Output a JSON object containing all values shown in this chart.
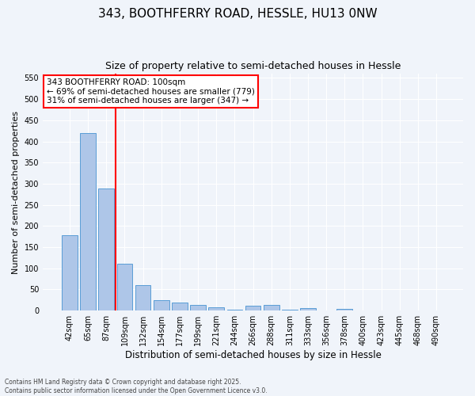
{
  "title": "343, BOOTHFERRY ROAD, HESSLE, HU13 0NW",
  "subtitle": "Size of property relative to semi-detached houses in Hessle",
  "xlabel": "Distribution of semi-detached houses by size in Hessle",
  "ylabel": "Number of semi-detached properties",
  "categories": [
    "42sqm",
    "65sqm",
    "87sqm",
    "109sqm",
    "132sqm",
    "154sqm",
    "177sqm",
    "199sqm",
    "221sqm",
    "244sqm",
    "266sqm",
    "288sqm",
    "311sqm",
    "333sqm",
    "356sqm",
    "378sqm",
    "400sqm",
    "423sqm",
    "445sqm",
    "468sqm",
    "490sqm"
  ],
  "values": [
    178,
    420,
    288,
    110,
    60,
    25,
    20,
    13,
    8,
    3,
    12,
    13,
    3,
    6,
    0,
    5,
    0,
    0,
    0,
    0,
    0
  ],
  "bar_color": "#aec6e8",
  "bar_edge_color": "#5a9ed6",
  "vline_x_index": 2.5,
  "vline_color": "red",
  "annotation_text": "343 BOOTHFERRY ROAD: 100sqm\n← 69% of semi-detached houses are smaller (779)\n31% of semi-detached houses are larger (347) →",
  "annotation_box_color": "white",
  "annotation_box_edge_color": "red",
  "ylim": [
    0,
    560
  ],
  "yticks": [
    0,
    50,
    100,
    150,
    200,
    250,
    300,
    350,
    400,
    450,
    500,
    550
  ],
  "background_color": "#f0f4fa",
  "grid_color": "#ffffff",
  "footer": "Contains HM Land Registry data © Crown copyright and database right 2025.\nContains public sector information licensed under the Open Government Licence v3.0.",
  "title_fontsize": 11,
  "subtitle_fontsize": 9,
  "xlabel_fontsize": 8.5,
  "ylabel_fontsize": 8,
  "tick_fontsize": 7,
  "annotation_fontsize": 7.5,
  "footer_fontsize": 5.5
}
